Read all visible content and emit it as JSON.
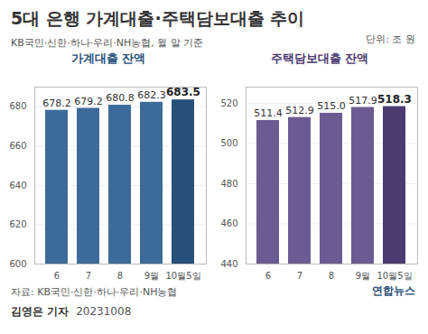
{
  "header": {
    "title": "5대 은행 가계대출·주택담보대출 추이",
    "subtitle": "KB국민·신한·하나·우리·NH농협, 월 말 기준",
    "unit": "단위: 조 원"
  },
  "chart_data": [
    {
      "type": "bar",
      "title": "가계대출 잔액",
      "categories": [
        "6",
        "7",
        "8",
        "9월",
        "10월5일"
      ],
      "values": [
        678.2,
        679.2,
        680.8,
        682.3,
        683.5
      ],
      "value_labels": [
        "678.2",
        "679.2",
        "680.8",
        "682.3",
        "683.5"
      ],
      "colors": [
        "#3d6b99",
        "#3d6b99",
        "#3d6b99",
        "#3d6b99",
        "#27507a"
      ],
      "ylim": [
        600,
        690
      ],
      "yticks": [
        600,
        620,
        640,
        660,
        680
      ],
      "grid": true,
      "data_labels": true
    },
    {
      "type": "bar",
      "title": "주택담보대출 잔액",
      "categories": [
        "6",
        "7",
        "8",
        "9월",
        "10월5일"
      ],
      "values": [
        511.4,
        512.9,
        515.0,
        517.9,
        518.3
      ],
      "value_labels": [
        "511.4",
        "512.9",
        "515.0",
        "517.9",
        "518.3"
      ],
      "colors": [
        "#6b5b92",
        "#6b5b92",
        "#6b5b92",
        "#6b5b92",
        "#4b3b70"
      ],
      "ylim": [
        440,
        528
      ],
      "yticks": [
        440,
        460,
        480,
        500,
        520
      ],
      "grid": true,
      "data_labels": true
    }
  ],
  "footer": {
    "source": "자료: KB국민·신한·하나·우리·NH농협",
    "logo": "연합뉴스",
    "credit": "김영은 기자",
    "date": "20231008"
  }
}
